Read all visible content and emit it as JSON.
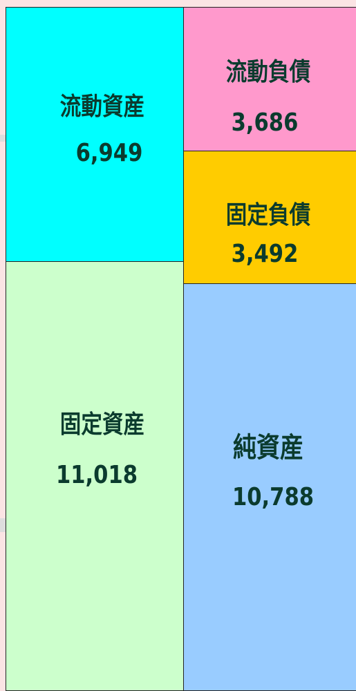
{
  "blocks": [
    {
      "label": "流動資産",
      "value": "6,949"
    },
    {
      "label": "固定資産",
      "value": "11,018"
    },
    {
      "label": "流動負債",
      "value": "3,686"
    },
    {
      "label": "固定負債",
      "value": "3,492"
    },
    {
      "label": "純資産",
      "value": "10,788"
    }
  ]
}
